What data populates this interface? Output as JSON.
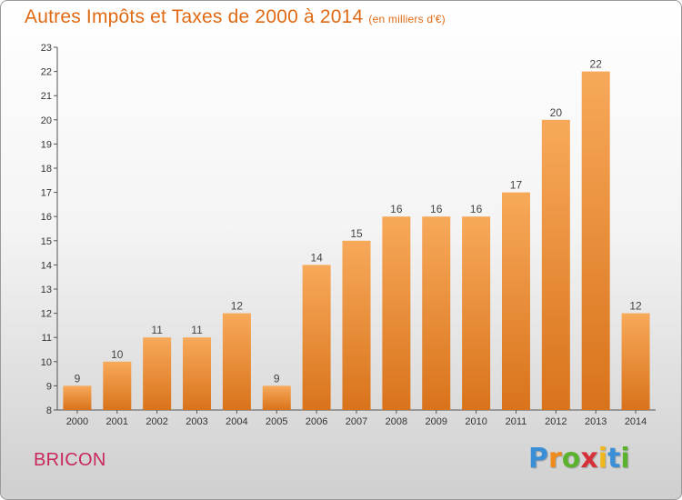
{
  "header": {
    "title": "Autres Impôts et Taxes de 2000 à 2014",
    "subtitle": "(en milliers d'€)"
  },
  "footer": {
    "commune": "BRICON",
    "brand_letters": [
      "P",
      "r",
      "o",
      "x",
      "i",
      "t",
      "i"
    ],
    "brand_colors": [
      "#3b8fd6",
      "#f08a1c",
      "#5bb22e",
      "#d6303a",
      "#f0b81c",
      "#3b8fd6",
      "#5bb22e"
    ]
  },
  "colors": {
    "bar_light": "#f7a95a",
    "bar_dark": "#d9731b",
    "title": "#e06a14",
    "commune": "#c8285a"
  },
  "chart_data": {
    "type": "bar",
    "title": "Autres Impôts et Taxes de 2000 à 2014",
    "subtitle": "(en milliers d'€)",
    "categories": [
      "2000",
      "2001",
      "2002",
      "2003",
      "2004",
      "2005",
      "2006",
      "2007",
      "2008",
      "2009",
      "2010",
      "2011",
      "2012",
      "2013",
      "2014"
    ],
    "values": [
      9,
      10,
      11,
      11,
      12,
      9,
      14,
      15,
      16,
      16,
      16,
      17,
      20,
      22,
      12
    ],
    "ylim": [
      8,
      23
    ],
    "yticks": [
      8,
      9,
      10,
      11,
      12,
      13,
      14,
      15,
      16,
      17,
      18,
      19,
      20,
      21,
      22,
      23
    ],
    "grid": false,
    "legend": "none"
  }
}
